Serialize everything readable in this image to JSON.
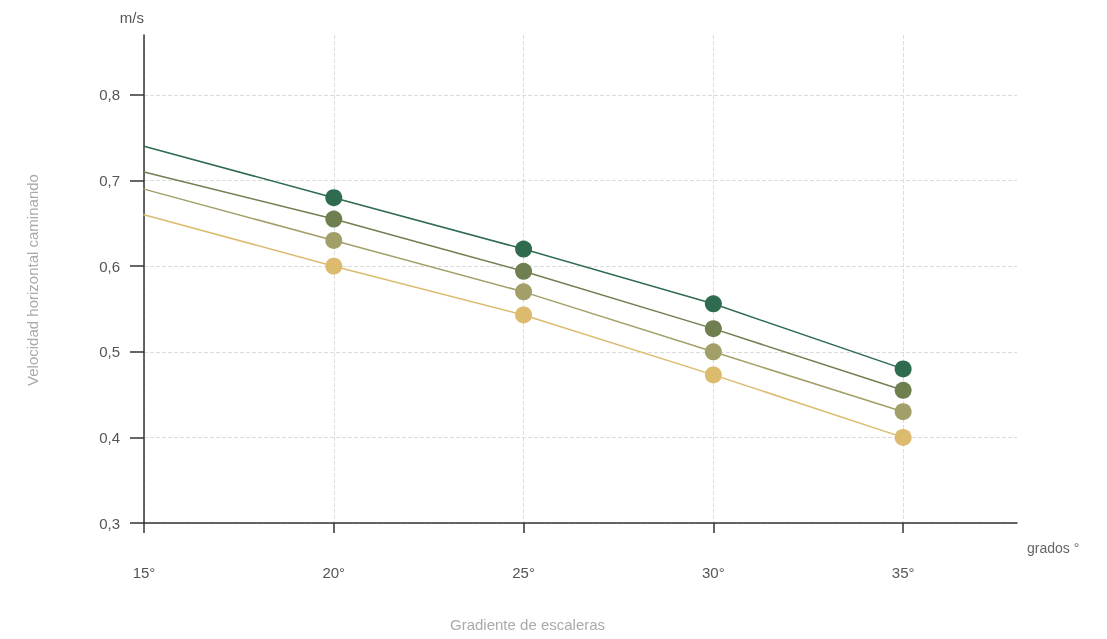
{
  "chart_data": {
    "type": "line",
    "xlabel": "Gradiente de escaleras",
    "ylabel": "Velocidad horizontal caminando",
    "annotations": [
      "m/s",
      "grados °"
    ],
    "x": [
      15,
      20,
      25,
      30,
      35
    ],
    "series": [
      {
        "color": "#2e6b4f",
        "values": [
          0.74,
          0.68,
          0.62,
          0.556,
          0.48
        ]
      },
      {
        "color": "#6f7f50",
        "values": [
          0.71,
          0.655,
          0.594,
          0.527,
          0.455
        ]
      },
      {
        "color": "#a39f68",
        "values": [
          0.69,
          0.63,
          0.57,
          0.5,
          0.43
        ]
      },
      {
        "color": "#dcbb6f",
        "values": [
          0.66,
          0.6,
          0.543,
          0.473,
          0.4
        ]
      }
    ],
    "xlim": [
      15,
      38
    ],
    "xticks": [
      {
        "value": 15,
        "label": "15°"
      },
      {
        "value": 20,
        "label": "20°"
      },
      {
        "value": 25,
        "label": "25°"
      },
      {
        "value": 30,
        "label": "30°"
      },
      {
        "value": 35,
        "label": "35°"
      }
    ],
    "ylim": [
      0.3,
      0.87
    ],
    "yticks": [
      {
        "value": 0.3,
        "label": "0,3"
      },
      {
        "value": 0.4,
        "label": "0,4"
      },
      {
        "value": 0.5,
        "label": "0,5"
      },
      {
        "value": 0.6,
        "label": "0,6"
      },
      {
        "value": 0.7,
        "label": "0,7"
      },
      {
        "value": 0.8,
        "label": "0,8"
      }
    ],
    "grid": true,
    "marker": "circle",
    "line_style": "solid"
  }
}
